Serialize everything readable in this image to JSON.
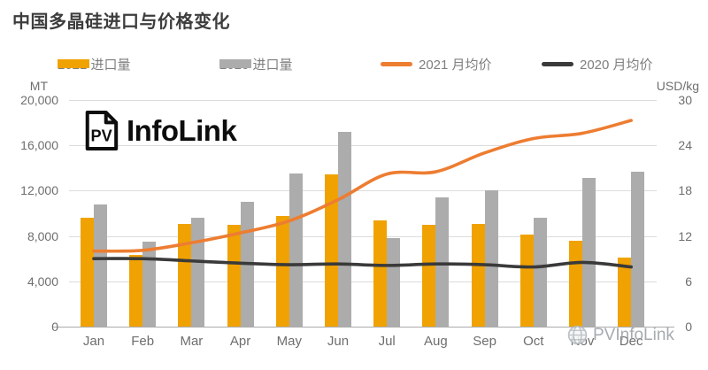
{
  "title": "中国多晶硅进口与价格变化",
  "legend": [
    {
      "label": "2021 进口量",
      "type": "bar",
      "color": "#F0A202"
    },
    {
      "label": "2020 进口量",
      "type": "bar",
      "color": "#ACACAC"
    },
    {
      "label": "2021 月均价",
      "type": "line",
      "color": "#ED7D31"
    },
    {
      "label": "2020 月均价",
      "type": "line",
      "color": "#3A3A3A"
    }
  ],
  "logo": {
    "badge": "PV",
    "name": "InfoLink"
  },
  "watermark": {
    "icon": "globe-icon",
    "text": "PVInfoLink"
  },
  "chart_data": {
    "type": "combo-bar-line",
    "categories": [
      "Jan",
      "Feb",
      "Mar",
      "Apr",
      "May",
      "Jun",
      "Jul",
      "Aug",
      "Sep",
      "Oct",
      "Nov",
      "Dec"
    ],
    "left_axis": {
      "label": "MT",
      "min": 0,
      "max": 20000,
      "ticks": [
        "20,000",
        "16,000",
        "12,000",
        "8,000",
        "4,000",
        "0"
      ]
    },
    "right_axis": {
      "label": "USD/kg",
      "min": 0,
      "max": 30,
      "ticks": [
        "30",
        "24",
        "18",
        "12",
        "6",
        "0"
      ]
    },
    "grid": true,
    "legend_position": "top",
    "series": [
      {
        "name": "2021 进口量",
        "type": "bar",
        "axis": "left",
        "color": "#F0A202",
        "values": [
          9600,
          6300,
          9100,
          9000,
          9800,
          13400,
          9400,
          9000,
          9100,
          8100,
          7600,
          6100
        ]
      },
      {
        "name": "2020 进口量",
        "type": "bar",
        "axis": "left",
        "color": "#ACACAC",
        "values": [
          10800,
          7500,
          9600,
          11000,
          13500,
          17200,
          7800,
          11400,
          12000,
          9600,
          13100,
          13700
        ]
      },
      {
        "name": "2021 月均价",
        "type": "line",
        "axis": "right",
        "color": "#ED7D31",
        "values": [
          10.0,
          10.1,
          11.1,
          12.4,
          14.0,
          16.8,
          20.2,
          20.5,
          23.0,
          24.9,
          25.6,
          27.3
        ]
      },
      {
        "name": "2020 月均价",
        "type": "line",
        "axis": "right",
        "color": "#3A3A3A",
        "values": [
          9.0,
          9.0,
          8.7,
          8.4,
          8.2,
          8.3,
          8.1,
          8.3,
          8.2,
          7.9,
          8.5,
          7.9
        ]
      }
    ]
  }
}
